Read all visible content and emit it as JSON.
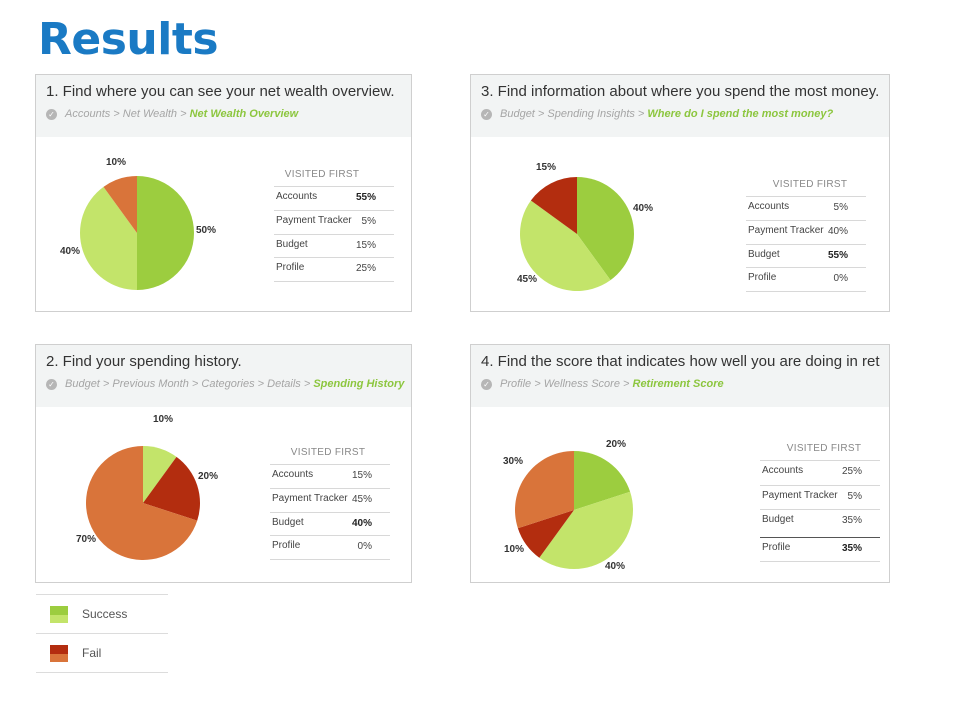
{
  "title": "Results",
  "colors": {
    "success_dark": "#9ccd3f",
    "success_light": "#c3e46a",
    "fail_dark": "#b32d0f",
    "fail_light": "#d9743a"
  },
  "legend": [
    {
      "label": "Success",
      "colors": [
        "#9ccd3f",
        "#c3e46a"
      ]
    },
    {
      "label": "Fail",
      "colors": [
        "#b32d0f",
        "#d9743a"
      ]
    }
  ],
  "chart_data": [
    {
      "type": "pie",
      "title": "1. Find where you can see your net wealth overview.",
      "breadcrumb": [
        "Accounts",
        "Net Wealth",
        "Net Wealth Overview"
      ],
      "slices": [
        {
          "label": "50%",
          "value": 50,
          "color": "#9ccd3f"
        },
        {
          "label": "40%",
          "value": 40,
          "color": "#c3e46a"
        },
        {
          "label": "10%",
          "value": 10,
          "color": "#d9743a"
        }
      ],
      "table": {
        "header": "VISITED FIRST",
        "rows": [
          {
            "name": "Accounts",
            "value": "55%",
            "bold": true
          },
          {
            "name": "Payment Tracker",
            "value": "5%",
            "bold": false
          },
          {
            "name": "Budget",
            "value": "15%",
            "bold": false
          },
          {
            "name": "Profile",
            "value": "25%",
            "bold": false
          }
        ]
      }
    },
    {
      "type": "pie",
      "title": "3. Find information about where you spend the most money.",
      "breadcrumb": [
        "Budget",
        "Spending Insights",
        "Where do I spend the most money?"
      ],
      "slices": [
        {
          "label": "40%",
          "value": 40,
          "color": "#9ccd3f"
        },
        {
          "label": "45%",
          "value": 45,
          "color": "#c3e46a"
        },
        {
          "label": "15%",
          "value": 15,
          "color": "#b32d0f"
        }
      ],
      "table": {
        "header": "VISITED FIRST",
        "rows": [
          {
            "name": "Accounts",
            "value": "5%",
            "bold": false
          },
          {
            "name": "Payment Tracker",
            "value": "40%",
            "bold": false
          },
          {
            "name": "Budget",
            "value": "55%",
            "bold": true
          },
          {
            "name": "Profile",
            "value": "0%",
            "bold": false
          }
        ]
      }
    },
    {
      "type": "pie",
      "title": "2. Find your spending history.",
      "breadcrumb": [
        "Budget",
        "Previous Month",
        "Categories",
        "Details",
        "Spending History"
      ],
      "slices": [
        {
          "label": "10%",
          "value": 10,
          "color": "#c3e46a"
        },
        {
          "label": "20%",
          "value": 20,
          "color": "#b32d0f"
        },
        {
          "label": "70%",
          "value": 70,
          "color": "#d9743a"
        }
      ],
      "table": {
        "header": "VISITED FIRST",
        "rows": [
          {
            "name": "Accounts",
            "value": "15%",
            "bold": false
          },
          {
            "name": "Payment Tracker",
            "value": "45%",
            "bold": false
          },
          {
            "name": "Budget",
            "value": "40%",
            "bold": true
          },
          {
            "name": "Profile",
            "value": "0%",
            "bold": false
          }
        ]
      }
    },
    {
      "type": "pie",
      "title": "4. Find the score that indicates how well you are doing in ret",
      "breadcrumb": [
        "Profile",
        "Wellness Score",
        "Retirement Score"
      ],
      "slices": [
        {
          "label": "20%",
          "value": 20,
          "color": "#9ccd3f"
        },
        {
          "label": "40%",
          "value": 40,
          "color": "#c3e46a"
        },
        {
          "label": "10%",
          "value": 10,
          "color": "#b32d0f"
        },
        {
          "label": "30%",
          "value": 30,
          "color": "#d9743a"
        }
      ],
      "table": {
        "header": "VISITED FIRST",
        "rows": [
          {
            "name": "Accounts",
            "value": "25%",
            "bold": false
          },
          {
            "name": "Payment Tracker",
            "value": "5%",
            "bold": false
          },
          {
            "name": "Budget",
            "value": "35%",
            "bold": false
          },
          {
            "name": "Profile",
            "value": "35%",
            "bold": true
          }
        ]
      }
    }
  ]
}
